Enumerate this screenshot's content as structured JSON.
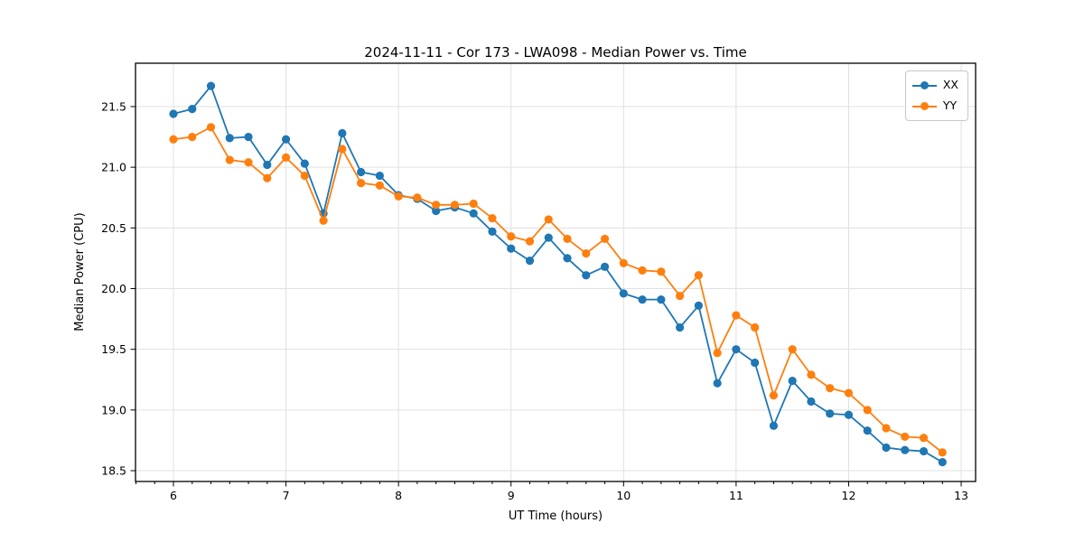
{
  "figure": {
    "title": "2024-11-11 - Cor 173 - LWA098 - Median Power vs. Time",
    "x_axis_label": "UT Time (hours)",
    "y_axis_label": "Median Power (CPU)"
  },
  "legend": {
    "items": [
      {
        "label": "XX",
        "color": "#1f77b4"
      },
      {
        "label": "YY",
        "color": "#ff7f0e"
      }
    ]
  },
  "chart_data": {
    "type": "line",
    "title": "2024-11-11 - Cor 173 - LWA098 - Median Power vs. Time",
    "xlabel": "UT Time (hours)",
    "ylabel": "Median Power (CPU)",
    "x": [
      6,
      6.1667,
      6.3333,
      6.5,
      6.6667,
      6.8333,
      7,
      7.1667,
      7.3333,
      7.5,
      7.6667,
      7.8333,
      8,
      8.1667,
      8.3333,
      8.5,
      8.6667,
      8.8333,
      9,
      9.1667,
      9.3333,
      9.5,
      9.6667,
      9.8333,
      10,
      10.1667,
      10.3333,
      10.5,
      10.6667,
      10.8333,
      11,
      11.1667,
      11.3333,
      11.5,
      11.6667,
      11.8333,
      12,
      12.1667,
      12.3333,
      12.5,
      12.6667,
      12.8333
    ],
    "series": [
      {
        "name": "XX",
        "color": "#1f77b4",
        "marker": "circle",
        "values": [
          21.44,
          21.48,
          21.67,
          21.24,
          21.25,
          21.02,
          21.23,
          21.03,
          20.62,
          21.28,
          20.96,
          20.93,
          20.77,
          20.74,
          20.64,
          20.67,
          20.62,
          20.47,
          20.33,
          20.23,
          20.42,
          20.25,
          20.11,
          20.18,
          19.96,
          19.91,
          19.91,
          19.68,
          19.86,
          19.22,
          19.5,
          19.39,
          18.87,
          19.24,
          19.07,
          18.97,
          18.96,
          18.83,
          18.69,
          18.67,
          18.66,
          18.57
        ]
      },
      {
        "name": "YY",
        "color": "#ff7f0e",
        "marker": "circle",
        "values": [
          21.23,
          21.25,
          21.33,
          21.06,
          21.04,
          20.91,
          21.08,
          20.93,
          20.56,
          21.15,
          20.87,
          20.85,
          20.76,
          20.75,
          20.69,
          20.69,
          20.7,
          20.58,
          20.43,
          20.39,
          20.57,
          20.41,
          20.29,
          20.41,
          20.21,
          20.15,
          20.14,
          19.94,
          20.11,
          19.47,
          19.78,
          19.68,
          19.12,
          19.5,
          19.29,
          19.18,
          19.14,
          19.0,
          18.85,
          18.78,
          18.77,
          18.65
        ]
      }
    ],
    "xlim": [
      5.663,
      13.128
    ],
    "ylim": [
      18.411,
      21.857
    ],
    "xticks": [
      6,
      7,
      8,
      9,
      10,
      11,
      12,
      13
    ],
    "xtick_labels": [
      "6",
      "7",
      "8",
      "9",
      "10",
      "11",
      "12",
      "13"
    ],
    "yticks": [
      18.5,
      19.0,
      19.5,
      20.0,
      20.5,
      21.0,
      21.5
    ],
    "ytick_labels": [
      "18.5",
      "19.0",
      "19.5",
      "20.0",
      "20.5",
      "21.0",
      "21.5"
    ],
    "x_minor_tick_step": 0.166667,
    "grid": true,
    "grid_color": "#e0e0e0",
    "axis_color": "#000000",
    "legend_position": "upper right"
  }
}
